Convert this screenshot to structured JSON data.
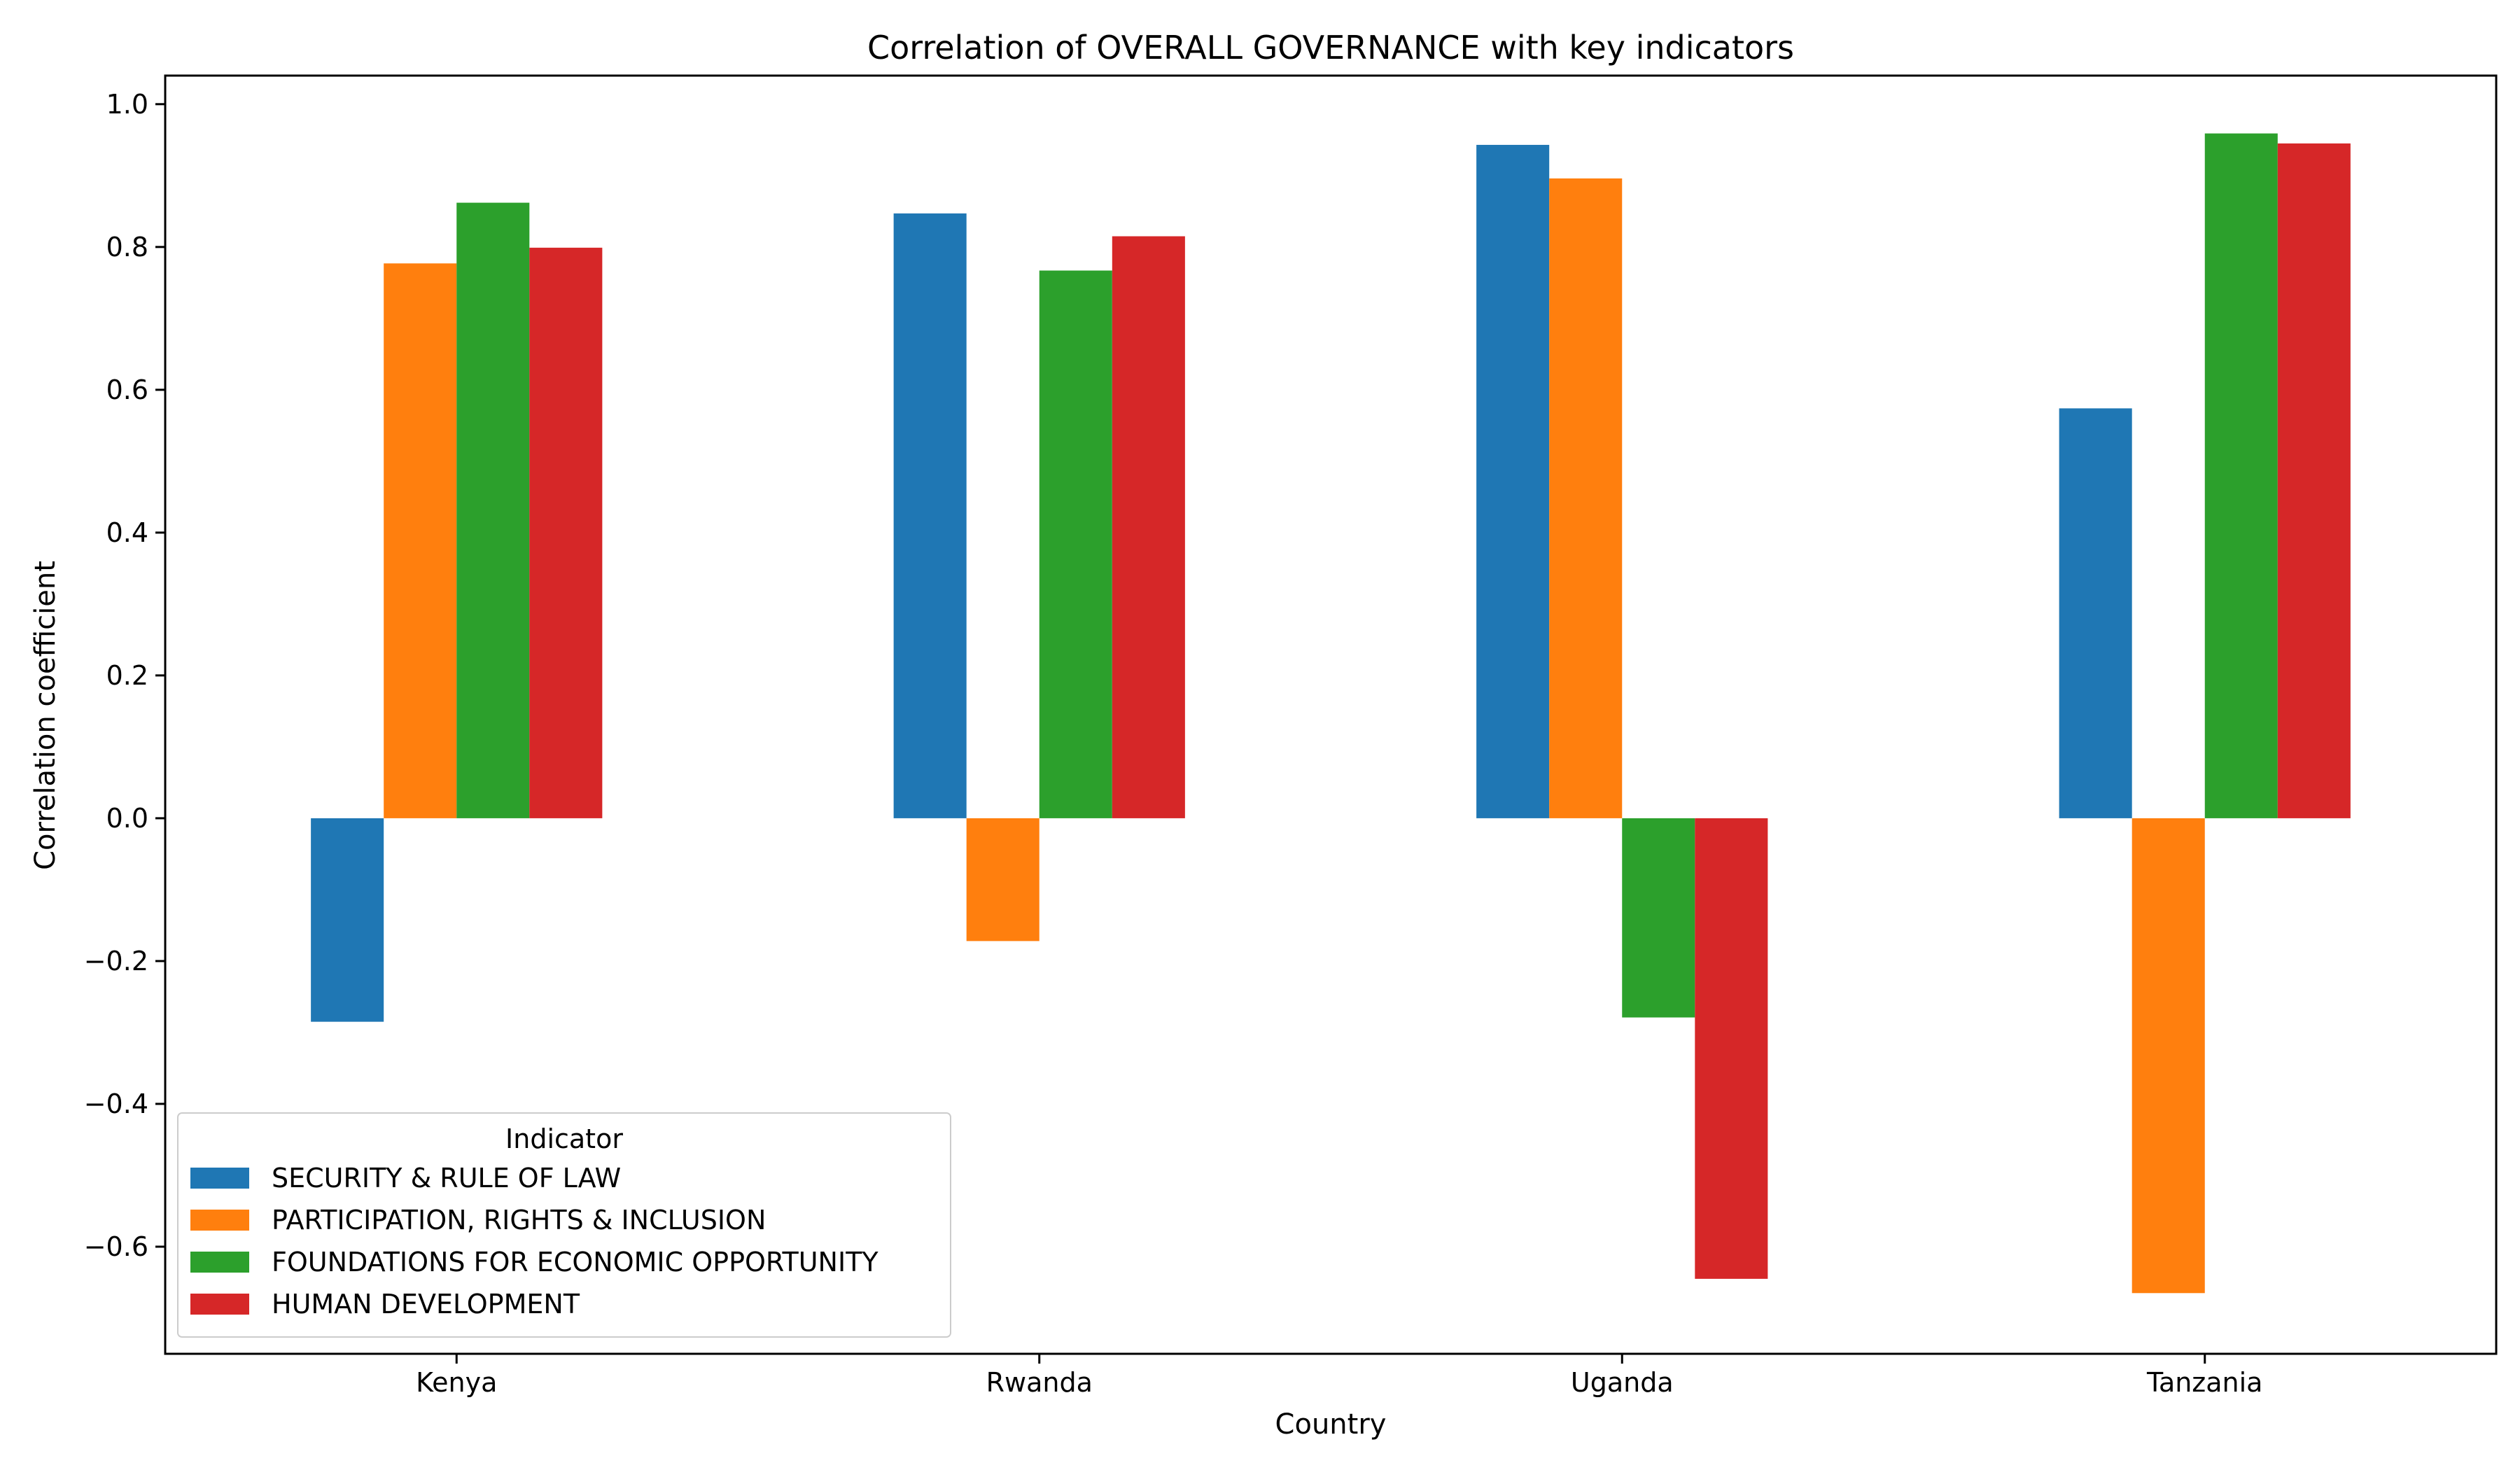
{
  "chart_data": {
    "type": "bar",
    "title": "Correlation of OVERALL GOVERNANCE with key indicators",
    "xlabel": "Country",
    "ylabel": "Correlation coefficient",
    "categories": [
      "Kenya",
      "Rwanda",
      "Uganda",
      "Tanzania"
    ],
    "ylim": [
      -0.75,
      1.04
    ],
    "yticks": [
      -0.6,
      -0.4,
      -0.2,
      0.0,
      0.2,
      0.4,
      0.6,
      0.8,
      1.0
    ],
    "ytick_labels": [
      "−0.6",
      "−0.4",
      "−0.2",
      "0.0",
      "0.2",
      "0.4",
      "0.6",
      "0.8",
      "1.0"
    ],
    "grid": false,
    "legend": {
      "title": "Indicator",
      "placement": "lower-left"
    },
    "series": [
      {
        "name": "SECURITY & RULE OF LAW",
        "color": "#1f77b4",
        "values": [
          -0.285,
          0.847,
          0.943,
          0.574
        ]
      },
      {
        "name": "PARTICIPATION, RIGHTS & INCLUSION",
        "color": "#ff7f0e",
        "values": [
          0.777,
          -0.172,
          0.896,
          -0.665
        ]
      },
      {
        "name": "FOUNDATIONS FOR ECONOMIC OPPORTUNITY",
        "color": "#2ca02c",
        "values": [
          0.862,
          0.767,
          -0.279,
          0.959
        ]
      },
      {
        "name": "HUMAN DEVELOPMENT",
        "color": "#d62728",
        "values": [
          0.799,
          0.815,
          -0.645,
          0.945
        ]
      }
    ]
  }
}
